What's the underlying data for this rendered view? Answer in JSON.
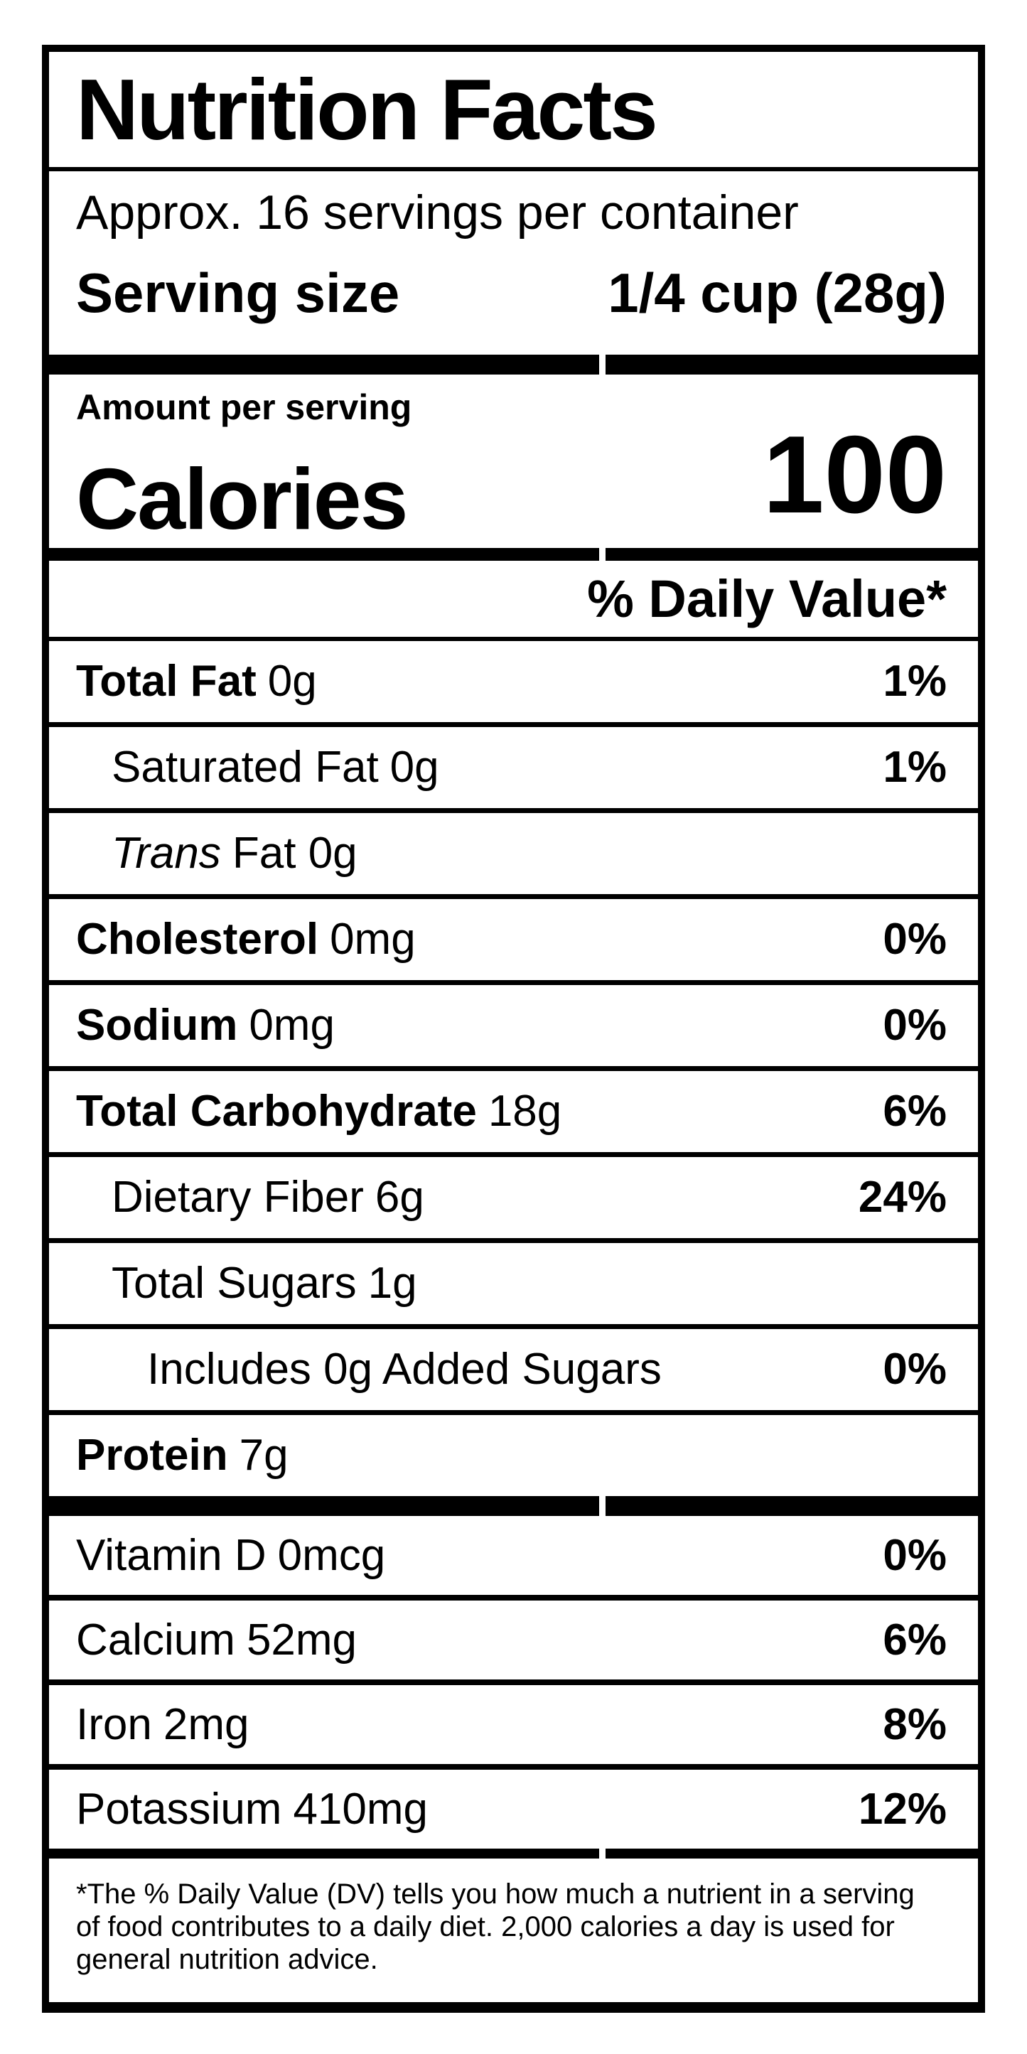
{
  "colors": {
    "ink": "#000000",
    "paper": "#ffffff"
  },
  "title": "Nutrition Facts",
  "servings_per_container": "Approx. 16 servings per container",
  "serving_size": {
    "label": "Serving size",
    "value": "1/4 cup (28g)"
  },
  "calories": {
    "amount_label": "Amount per serving",
    "label": "Calories",
    "value": "100"
  },
  "daily_value_header": "% Daily Value*",
  "nutrients": [
    {
      "name": "Total Fat",
      "amount": "0g",
      "dv": "1%"
    },
    {
      "name": "Saturated Fat",
      "amount": "0g",
      "dv": "1%"
    },
    {
      "name": "Trans",
      "amount": "Fat 0g",
      "dv": ""
    },
    {
      "name": "Cholesterol",
      "amount": "0mg",
      "dv": "0%"
    },
    {
      "name": "Sodium",
      "amount": "0mg",
      "dv": "0%"
    },
    {
      "name": "Total Carbohydrate",
      "amount": "18g",
      "dv": "6%"
    },
    {
      "name": "Dietary Fiber",
      "amount": "6g",
      "dv": "24%"
    },
    {
      "name": "Total Sugars",
      "amount": "1g",
      "dv": ""
    },
    {
      "name": "Includes 0g Added Sugars",
      "amount": "",
      "dv": "0%"
    },
    {
      "name": "Protein",
      "amount": "7g",
      "dv": ""
    }
  ],
  "vitamins": [
    {
      "name": "Vitamin D",
      "amount": "0mcg",
      "dv": "0%"
    },
    {
      "name": "Calcium",
      "amount": "52mg",
      "dv": "6%"
    },
    {
      "name": "Iron",
      "amount": "2mg",
      "dv": "8%"
    },
    {
      "name": "Potassium",
      "amount": "410mg",
      "dv": "12%"
    }
  ],
  "footnote_lines": [
    "*The % Daily Value (DV) tells you how much a nutrient in a serving",
    "of food contributes to a daily diet. 2,000 calories a day is used for",
    "general nutrition advice."
  ]
}
